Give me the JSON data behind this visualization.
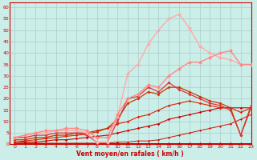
{
  "title": "",
  "xlabel": "Vent moyen/en rafales ( km/h )",
  "ylabel": "",
  "bg_color": "#cceee8",
  "grid_color": "#aacccc",
  "xlim": [
    -0.5,
    23
  ],
  "ylim": [
    0,
    62
  ],
  "yticks": [
    0,
    5,
    10,
    15,
    20,
    25,
    30,
    35,
    40,
    45,
    50,
    55,
    60
  ],
  "xticks": [
    0,
    1,
    2,
    3,
    4,
    5,
    6,
    7,
    8,
    9,
    10,
    11,
    12,
    13,
    14,
    15,
    16,
    17,
    18,
    19,
    20,
    21,
    22,
    23
  ],
  "series": [
    {
      "x": [
        0,
        1,
        2,
        3,
        4,
        5,
        6,
        7,
        8,
        9,
        10,
        11,
        12,
        13,
        14,
        15,
        16,
        17,
        18,
        19,
        20,
        21,
        22,
        23
      ],
      "y": [
        0.5,
        0.5,
        0.5,
        0.5,
        0.5,
        0.5,
        0.5,
        0.5,
        0.5,
        0.5,
        0.5,
        0.5,
        0.5,
        0.5,
        0.5,
        0.5,
        0.5,
        0.5,
        0.5,
        0.5,
        0.5,
        0.5,
        0.5,
        0.5
      ],
      "color": "#bb0000",
      "linewidth": 0.7,
      "marker": "D",
      "markersize": 1.5,
      "linestyle": "-",
      "zorder": 3
    },
    {
      "x": [
        0,
        1,
        2,
        3,
        4,
        5,
        6,
        7,
        8,
        9,
        10,
        11,
        12,
        13,
        14,
        15,
        16,
        17,
        18,
        19,
        20,
        21,
        22,
        23
      ],
      "y": [
        0.5,
        0.5,
        0.5,
        0.5,
        0.5,
        0.5,
        0.5,
        0.5,
        0.5,
        0.5,
        1,
        1,
        1.5,
        1.5,
        2,
        3,
        4,
        5,
        6,
        7,
        8,
        9,
        11,
        13
      ],
      "color": "#cc1100",
      "linewidth": 0.7,
      "marker": "D",
      "markersize": 1.5,
      "linestyle": "-",
      "zorder": 3
    },
    {
      "x": [
        0,
        1,
        2,
        3,
        4,
        5,
        6,
        7,
        8,
        9,
        10,
        11,
        12,
        13,
        14,
        15,
        16,
        17,
        18,
        19,
        20,
        21,
        22,
        23
      ],
      "y": [
        1,
        1,
        1,
        1.5,
        2,
        2,
        2.5,
        3,
        3.5,
        4,
        5,
        6,
        7,
        8,
        9,
        11,
        12,
        13,
        14,
        15,
        16,
        16,
        16,
        16
      ],
      "color": "#cc0000",
      "linewidth": 0.8,
      "marker": "D",
      "markersize": 1.8,
      "linestyle": "-",
      "zorder": 3
    },
    {
      "x": [
        0,
        1,
        2,
        3,
        4,
        5,
        6,
        7,
        8,
        9,
        10,
        11,
        12,
        13,
        14,
        15,
        16,
        17,
        18,
        19,
        20,
        21,
        22,
        23
      ],
      "y": [
        1,
        1.5,
        2,
        2.5,
        3,
        3.5,
        4,
        4.5,
        5.5,
        7,
        9,
        10,
        12,
        13,
        15,
        17,
        18,
        19,
        18,
        17,
        16,
        16,
        14,
        16
      ],
      "color": "#dd2200",
      "linewidth": 0.8,
      "marker": "D",
      "markersize": 1.8,
      "linestyle": "-",
      "zorder": 3
    },
    {
      "x": [
        0,
        1,
        2,
        3,
        4,
        5,
        6,
        7,
        8,
        9,
        10,
        11,
        12,
        13,
        14,
        15,
        16,
        17,
        18,
        19,
        20,
        21,
        22,
        23
      ],
      "y": [
        2,
        2,
        3,
        3,
        4,
        4,
        5,
        5,
        6,
        7,
        11,
        18,
        20,
        23,
        22,
        25,
        25,
        23,
        21,
        19,
        18,
        16,
        4,
        16
      ],
      "color": "#cc3300",
      "linewidth": 0.9,
      "marker": "D",
      "markersize": 2.0,
      "linestyle": "-",
      "zorder": 4
    },
    {
      "x": [
        0,
        1,
        2,
        3,
        4,
        5,
        6,
        7,
        8,
        9,
        10,
        11,
        12,
        13,
        14,
        15,
        16,
        17,
        18,
        19,
        20,
        21,
        22,
        23
      ],
      "y": [
        3,
        3,
        4,
        4,
        5,
        5,
        5,
        4,
        1,
        1,
        10,
        20,
        21,
        25,
        23,
        27,
        24,
        22,
        20,
        18,
        17,
        15,
        4,
        17
      ],
      "color": "#dd3333",
      "linewidth": 0.9,
      "marker": "D",
      "markersize": 2.0,
      "linestyle": "-",
      "zorder": 4
    },
    {
      "x": [
        0,
        1,
        2,
        3,
        4,
        5,
        6,
        7,
        8,
        9,
        10,
        11,
        12,
        13,
        14,
        15,
        16,
        17,
        18,
        19,
        20,
        21,
        22,
        23
      ],
      "y": [
        3,
        4,
        5,
        5,
        6,
        6,
        6,
        5,
        1,
        1,
        12,
        31,
        35,
        44,
        50,
        55,
        57,
        51,
        43,
        40,
        38,
        37,
        35,
        35
      ],
      "color": "#ffaaaa",
      "linewidth": 1.0,
      "marker": "D",
      "markersize": 2.5,
      "linestyle": "-",
      "zorder": 5
    },
    {
      "x": [
        0,
        1,
        2,
        3,
        4,
        5,
        6,
        7,
        8,
        9,
        10,
        11,
        12,
        13,
        14,
        15,
        16,
        17,
        18,
        19,
        20,
        21,
        22,
        23
      ],
      "y": [
        3,
        4,
        5,
        6,
        6,
        7,
        7,
        6,
        3,
        3,
        13,
        20,
        22,
        26,
        25,
        30,
        33,
        36,
        36,
        38,
        40,
        41,
        35,
        35
      ],
      "color": "#ff8888",
      "linewidth": 1.0,
      "marker": "D",
      "markersize": 2.5,
      "linestyle": "-",
      "zorder": 5
    }
  ]
}
